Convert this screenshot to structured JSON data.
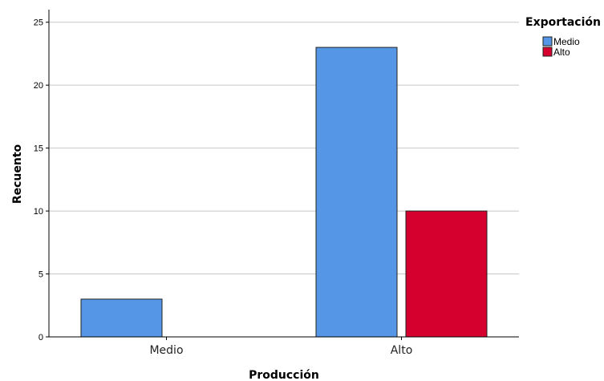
{
  "chart_data": {
    "type": "bar",
    "title": "",
    "xlabel": "Producción",
    "ylabel": "Recuento",
    "categories": [
      "Medio",
      "Alto"
    ],
    "series": [
      {
        "name": "Medio",
        "color": "#5596e6",
        "values": [
          3,
          23
        ]
      },
      {
        "name": "Alto",
        "color": "#d6002f",
        "values": [
          null,
          10
        ]
      }
    ],
    "ylim": [
      0,
      26
    ],
    "yticks": [
      0,
      5,
      10,
      15,
      20,
      25
    ],
    "grid": true,
    "legend": {
      "title": "Exportación",
      "position": "top-right"
    }
  }
}
